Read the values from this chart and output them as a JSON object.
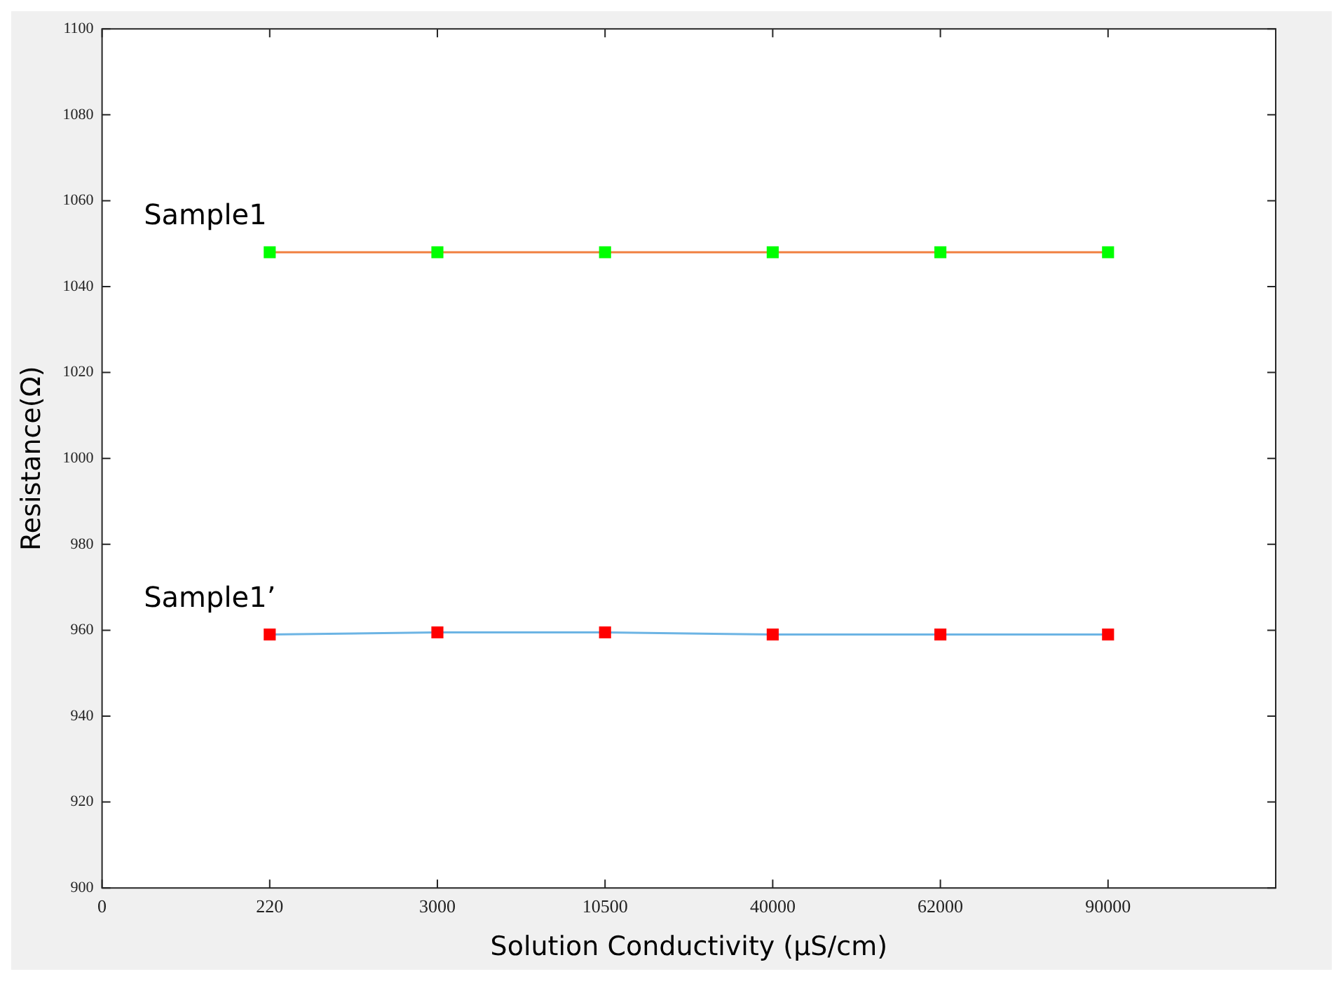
{
  "chart_data": {
    "type": "line",
    "xlabel": "Solution Conductivity (µS/cm)",
    "ylabel": "Resistance(Ω)",
    "categories": [
      "0",
      "220",
      "3000",
      "10500",
      "40000",
      "62000",
      "90000",
      null
    ],
    "series": [
      {
        "name": "Sample1",
        "color": "#f08040",
        "colors": [
          null,
          "#00ff00",
          "#00ff00",
          "#00ff00",
          "#00ff00",
          "#00ff00",
          "#00ff00",
          null
        ],
        "values": [
          null,
          1048,
          1048,
          1048,
          1048,
          1048,
          1048,
          null
        ]
      },
      {
        "name": "Sample1’",
        "color": "#6cb4e4",
        "colors": [
          null,
          "#ff0000",
          "#ff0000",
          "#ff0000",
          "#ff0000",
          "#ff0000",
          "#ff0000",
          null
        ],
        "values": [
          null,
          959,
          959.5,
          959.5,
          959,
          959,
          959,
          null
        ]
      }
    ],
    "ylim": [
      900,
      1100
    ],
    "yticks": [
      900,
      920,
      940,
      960,
      980,
      1000,
      1020,
      1040,
      1060,
      1080,
      1100
    ],
    "grid": false,
    "legend": false,
    "marker": "square",
    "line_style": "solid"
  }
}
